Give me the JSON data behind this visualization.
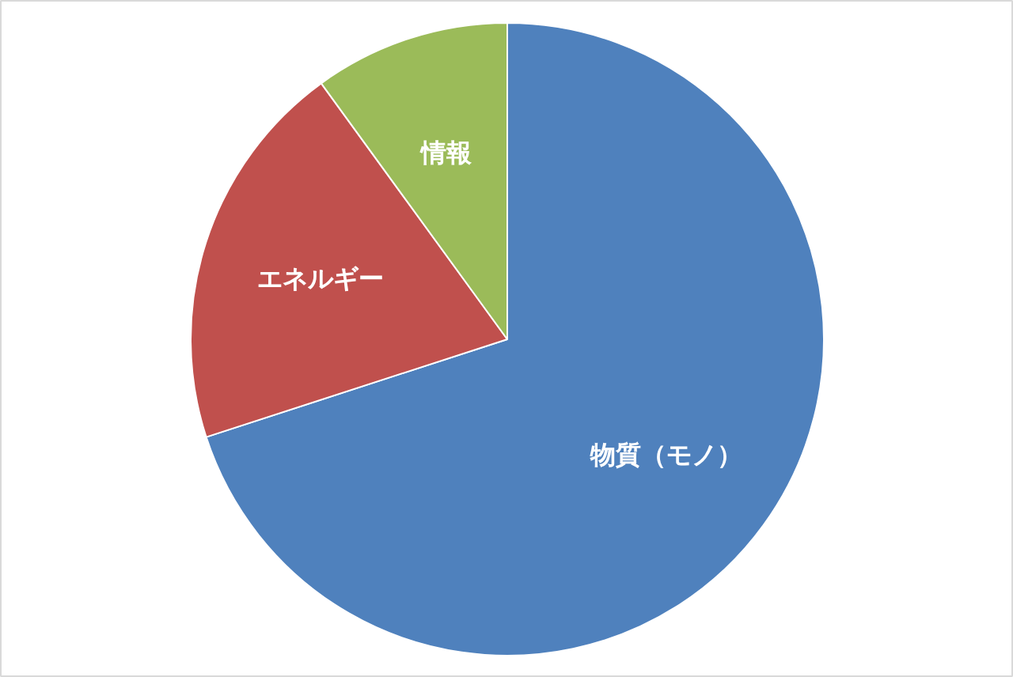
{
  "chart_data": {
    "type": "pie",
    "categories": [
      "物質（モノ）",
      "エネルギー",
      "情報"
    ],
    "values": [
      70,
      20,
      10
    ],
    "colors": [
      "#4f81bd",
      "#c0504d",
      "#9bbb59"
    ],
    "data_labels": false
  }
}
